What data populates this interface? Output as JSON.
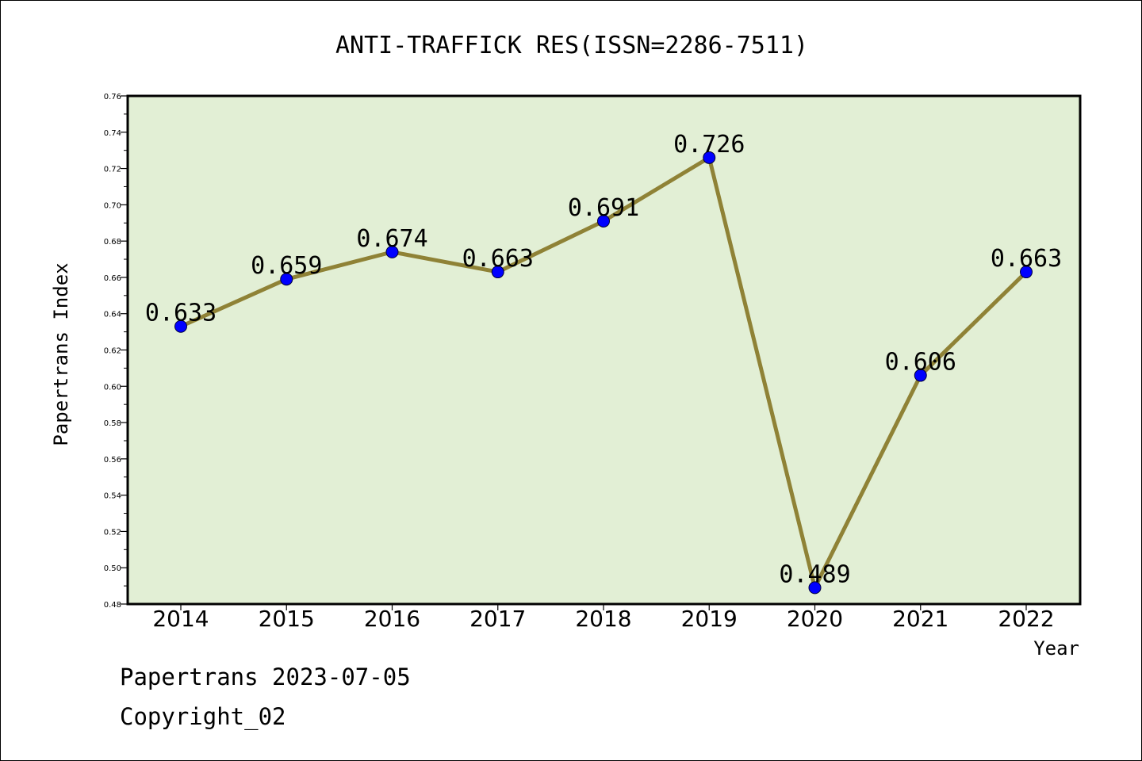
{
  "chart_data": {
    "type": "line",
    "title": "ANTI-TRAFFICK RES(ISSN=2286-7511)",
    "xlabel": "Year",
    "ylabel": "Papertrans Index",
    "categories": [
      "2014",
      "2015",
      "2016",
      "2017",
      "2018",
      "2019",
      "2020",
      "2021",
      "2022"
    ],
    "values": [
      0.633,
      0.659,
      0.674,
      0.663,
      0.691,
      0.726,
      0.489,
      0.606,
      0.663
    ],
    "data_labels": [
      "0.633",
      "0.659",
      "0.674",
      "0.663",
      "0.691",
      "0.726",
      "0.489",
      "0.606",
      "0.663"
    ],
    "ylim": [
      0.48,
      0.76
    ],
    "yticks": [
      "0.48",
      "0.50",
      "0.52",
      "0.54",
      "0.56",
      "0.58",
      "0.60",
      "0.62",
      "0.64",
      "0.66",
      "0.68",
      "0.70",
      "0.72",
      "0.74",
      "0.76"
    ],
    "grid": false,
    "colors": {
      "plot_background": "#e2efd5",
      "line": "#8f8236",
      "marker": "#0000ff"
    }
  },
  "footer": {
    "line1": "Papertrans 2023-07-05",
    "line2": "Copyright_02"
  }
}
